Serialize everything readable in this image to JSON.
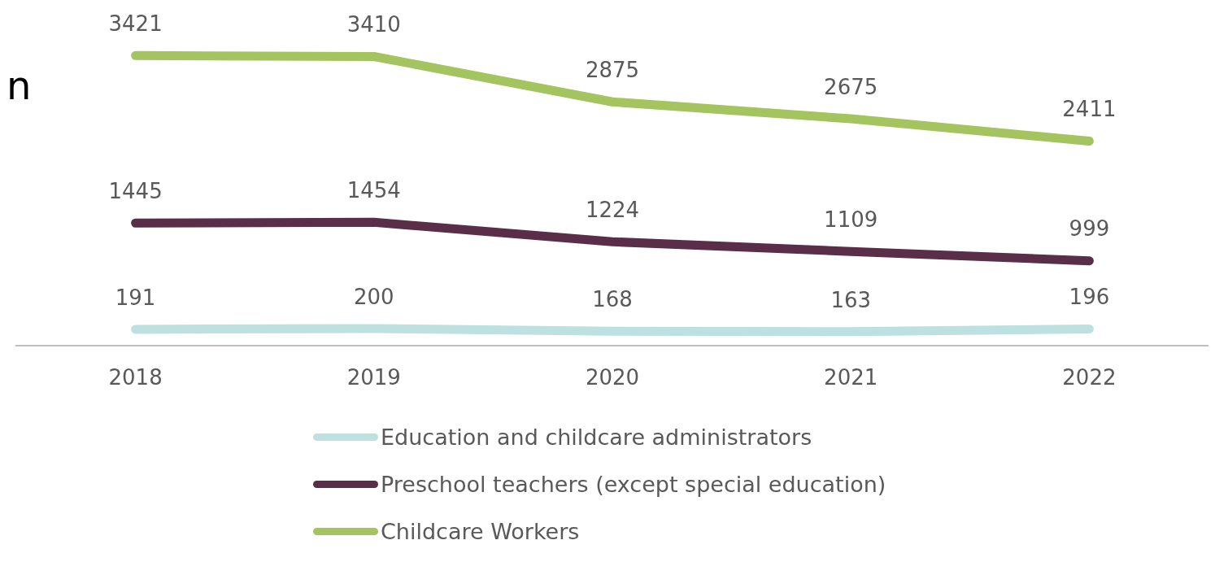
{
  "chart_data": {
    "type": "line",
    "annotations": [
      "n"
    ],
    "categories": [
      "2018",
      "2019",
      "2020",
      "2021",
      "2022"
    ],
    "series": [
      {
        "name": "Education and childcare administrators",
        "color": "#bde0e0",
        "values": [
          191,
          200,
          168,
          163,
          196
        ]
      },
      {
        "name": "Preschool teachers (except special education)",
        "color": "#5a2e48",
        "values": [
          1445,
          1454,
          1224,
          1109,
          999
        ]
      },
      {
        "name": "Childcare Workers",
        "color": "#a3c45e",
        "values": [
          3421,
          3410,
          2875,
          2675,
          2411
        ]
      }
    ],
    "tick_labels": "x",
    "grid": false,
    "legend": "bottom",
    "data_labels": true,
    "marker": "none",
    "line_style": "solid"
  }
}
